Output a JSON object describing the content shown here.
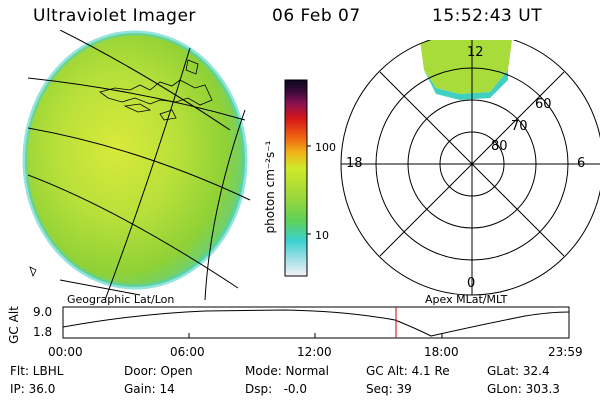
{
  "header": {
    "title": "Ultraviolet Imager",
    "date": "06 Feb 07",
    "time": "15:52:43 UT"
  },
  "colorbar": {
    "unit_label": "photon cm⁻²s⁻¹",
    "tick_100": "100",
    "tick_10": "10"
  },
  "polar": {
    "label_top": "12",
    "label_left": "18",
    "label_right": "6",
    "label_bottom": "0",
    "ring_60": "60",
    "ring_70": "70",
    "ring_80": "80"
  },
  "panel_labels": {
    "geo": "Geographic Lat/Lon",
    "apex": "Apex MLat/MLT"
  },
  "altitude_plot": {
    "ylabel": "GC Alt",
    "y_top": "9.0",
    "y_bottom": "1.8",
    "x_ticks": [
      "00:00",
      "06:00",
      "12:00",
      "18:00",
      "23:59"
    ]
  },
  "status": {
    "flt": "Flt: LBHL",
    "door": "Door: Open",
    "mode": "Mode: Normal",
    "gc_alt": "GC Alt: 4.1 Re",
    "glat": "GLat: 32.4",
    "ip": "IP: 36.0",
    "gain": "Gain: 14",
    "dsp": "Dsp:   -0.0",
    "seq": "Seq: 39",
    "glon": "GLon: 303.3"
  },
  "colors": {
    "disk_main": "#8fd136",
    "disk_light": "#c8e83a",
    "disk_edge": "#4ad2c8",
    "marker": "#cc0000"
  }
}
